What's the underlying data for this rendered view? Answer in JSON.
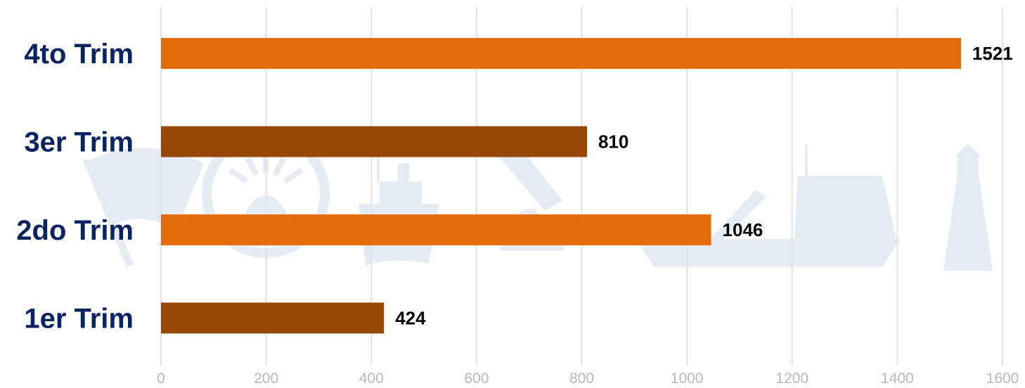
{
  "chart_data": {
    "type": "bar",
    "orientation": "horizontal",
    "categories": [
      "4to Trim",
      "3er Trim",
      "2do Trim",
      "1er Trim"
    ],
    "values": [
      1521,
      810,
      1046,
      424
    ],
    "value_labels": [
      "1521",
      "810",
      "1046",
      "424"
    ],
    "bar_colors": [
      "#E46C0A",
      "#974706",
      "#E46C0A",
      "#974706"
    ],
    "xlim": [
      0,
      1600
    ],
    "x_ticks": [
      0,
      200,
      400,
      600,
      800,
      1000,
      1200,
      1400,
      1600
    ],
    "x_tick_labels": [
      "0",
      "200",
      "400",
      "600",
      "800",
      "1000",
      "1200",
      "1400",
      "1600"
    ],
    "grid": "vertical",
    "legend": "none",
    "title": "",
    "xlabel": "",
    "ylabel": ""
  },
  "colors": {
    "category_label": "#0B2461",
    "value_label": "#000000",
    "tick_label": "#B8B8B8",
    "gridline": "#E3E3E3",
    "watermark": "#E6EAF2"
  },
  "watermark_icons": [
    "flag-icon",
    "ship-wheel-icon",
    "boat-icon",
    "microscope-icon",
    "vessel-icon",
    "lighthouse-icon"
  ]
}
